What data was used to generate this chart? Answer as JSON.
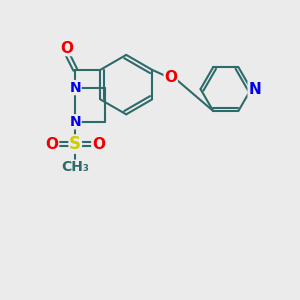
{
  "bg_color": "#ebebeb",
  "bond_color": "#2d6b6b",
  "bond_width": 1.5,
  "atom_colors": {
    "N": "#0000ee",
    "O": "#ee0000",
    "S": "#cccc00",
    "C": "#2d6b6b"
  },
  "font_size_atom": 10,
  "font_size_methyl": 10,
  "xlim": [
    0,
    10
  ],
  "ylim": [
    0,
    10
  ]
}
